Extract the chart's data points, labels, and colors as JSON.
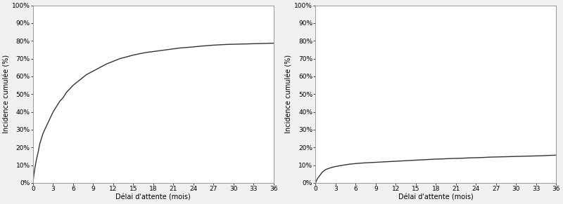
{
  "ylabel": "Incidence cumulée (%)",
  "xlabel": "Délai d'attente (mois)",
  "xticks": [
    0,
    3,
    6,
    9,
    12,
    15,
    18,
    21,
    24,
    27,
    30,
    33,
    36
  ],
  "yticks": [
    0,
    10,
    20,
    30,
    40,
    50,
    60,
    70,
    80,
    90,
    100
  ],
  "xlim": [
    0,
    36
  ],
  "ylim": [
    0,
    100
  ],
  "line_color": "#333333",
  "line_width": 1.0,
  "background_color": "#f0f0f0",
  "plot_bg": "#ffffff",
  "spine_color": "#999999",
  "tick_label_size": 6.5,
  "axis_label_size": 7.0,
  "left_curve": {
    "x": [
      0,
      0.1,
      0.3,
      0.5,
      0.8,
      1,
      1.5,
      2,
      2.5,
      3,
      3.5,
      4,
      4.5,
      5,
      5.5,
      6,
      7,
      8,
      9,
      10,
      11,
      12,
      13,
      14,
      15,
      16,
      17,
      18,
      19,
      20,
      21,
      22,
      23,
      24,
      25,
      26,
      27,
      28,
      29,
      30,
      31,
      32,
      33,
      34,
      35,
      36
    ],
    "y": [
      0,
      4,
      9,
      13,
      18,
      22,
      28,
      32,
      36,
      40,
      43,
      46,
      48,
      51,
      53,
      55,
      58,
      61,
      63,
      65,
      67,
      68.5,
      70,
      71,
      72,
      72.8,
      73.5,
      74,
      74.5,
      75,
      75.5,
      76,
      76.3,
      76.6,
      77,
      77.3,
      77.6,
      77.8,
      78.0,
      78.1,
      78.2,
      78.3,
      78.4,
      78.5,
      78.6,
      78.7
    ]
  },
  "right_curve": {
    "x": [
      0,
      0.1,
      0.3,
      0.5,
      0.8,
      1,
      1.5,
      2,
      2.5,
      3,
      3.5,
      4,
      4.5,
      5,
      5.5,
      6,
      7,
      8,
      9,
      10,
      11,
      12,
      13,
      14,
      15,
      16,
      17,
      18,
      19,
      20,
      21,
      22,
      23,
      24,
      25,
      26,
      27,
      28,
      29,
      30,
      31,
      32,
      33,
      34,
      35,
      36
    ],
    "y": [
      0,
      1,
      2.5,
      3.5,
      5,
      6,
      7.5,
      8.2,
      8.8,
      9.2,
      9.6,
      9.9,
      10.2,
      10.5,
      10.7,
      10.9,
      11.2,
      11.4,
      11.6,
      11.8,
      12.0,
      12.2,
      12.4,
      12.6,
      12.8,
      13.0,
      13.2,
      13.4,
      13.5,
      13.7,
      13.8,
      13.9,
      14.1,
      14.2,
      14.3,
      14.5,
      14.6,
      14.7,
      14.8,
      14.9,
      15.0,
      15.1,
      15.2,
      15.3,
      15.5,
      15.6
    ]
  }
}
